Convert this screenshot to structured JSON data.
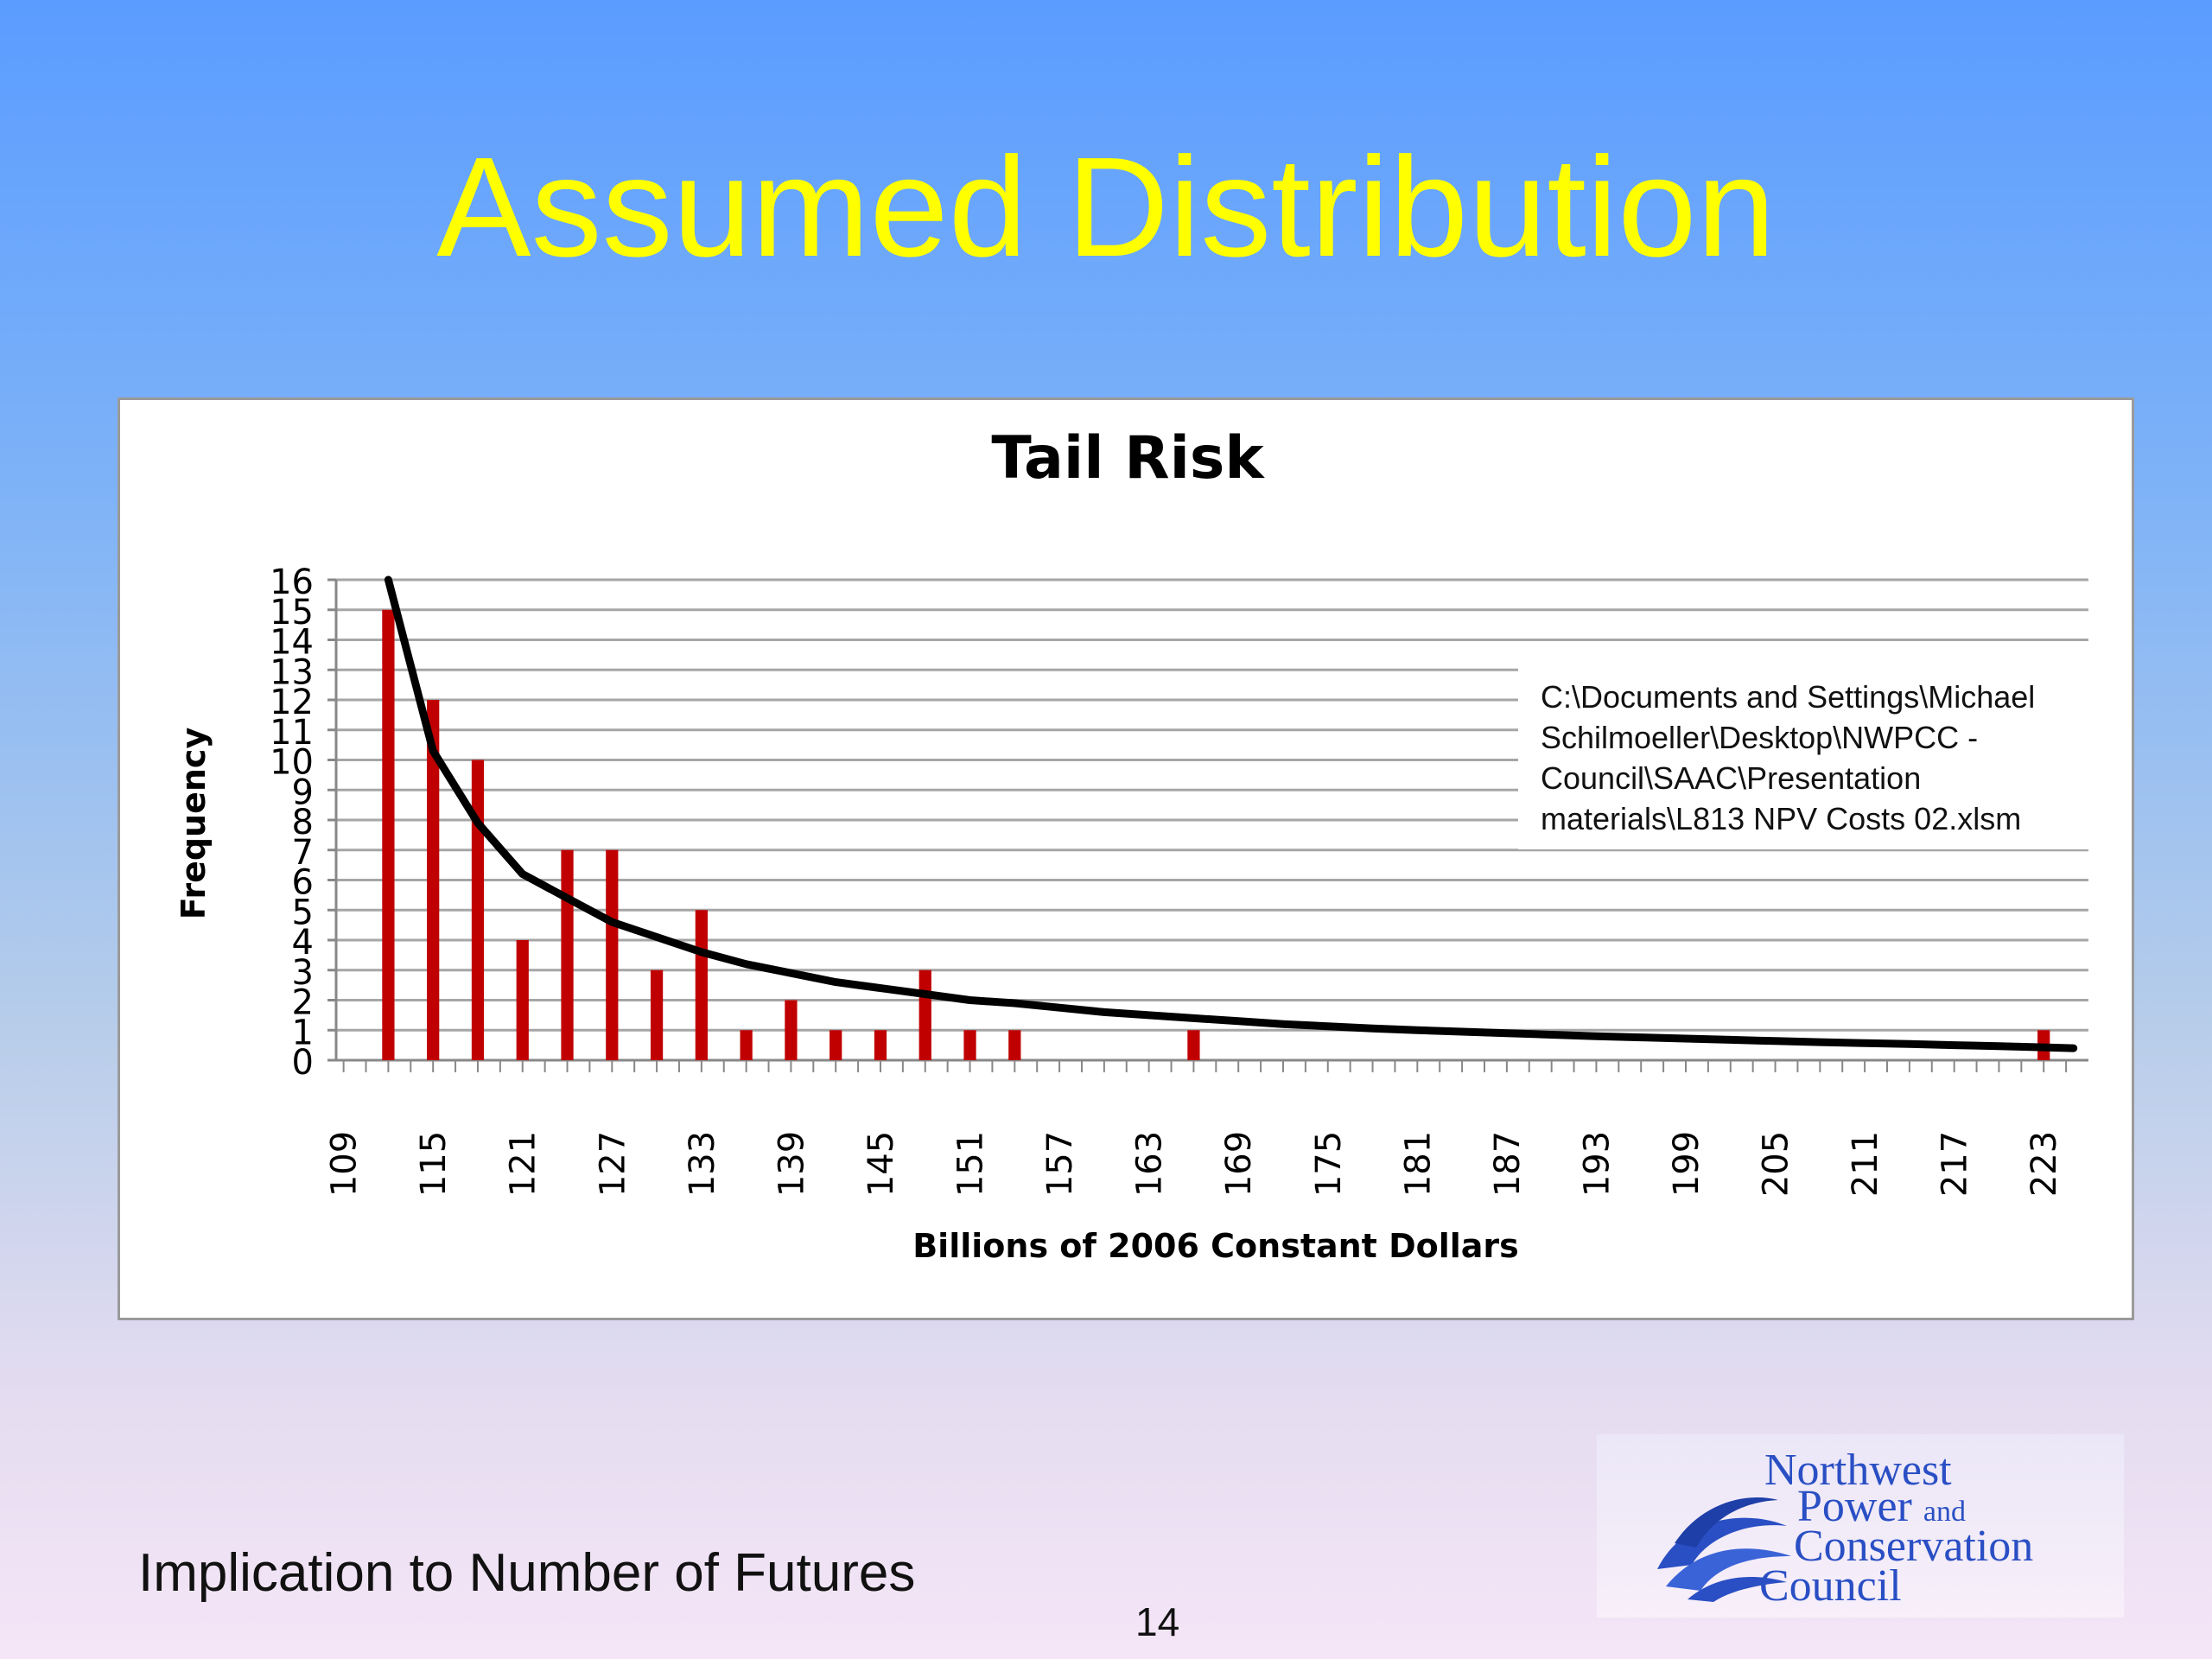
{
  "slide": {
    "title": "Assumed Distribution",
    "footer": "Implication to Number of Futures",
    "page_number": "14"
  },
  "logo": {
    "line1": "Northwest",
    "line2": "Power",
    "line2_small": "and",
    "line3": "Conservation",
    "line4": "Council",
    "color": "#2a4fc4"
  },
  "note": {
    "lines": [
      "C:\\Documents and Settings\\Michael",
      "Schilmoeller\\Desktop\\NWPCC -",
      "Council\\SAAC\\Presentation",
      "materials\\L813 NPV Costs 02.xlsm"
    ]
  },
  "colors": {
    "title": "#ffff00",
    "bar": "#c00000",
    "curve": "#000000",
    "grid": "#a6a6a6"
  },
  "chart_data": {
    "type": "bar",
    "title": "Tail Risk",
    "xlabel": "Billions of 2006 Constant Dollars",
    "ylabel": "Frequency",
    "ylim": [
      0,
      16
    ],
    "y_ticks": [
      "0",
      "1",
      "2",
      "3",
      "4",
      "5",
      "6",
      "7",
      "8",
      "9",
      "10",
      "11",
      "12",
      "13",
      "14",
      "15",
      "16"
    ],
    "grid": true,
    "x_tick_labels": [
      "109",
      "115",
      "121",
      "127",
      "133",
      "139",
      "145",
      "151",
      "157",
      "163",
      "169",
      "175",
      "181",
      "187",
      "193",
      "199",
      "205",
      "211",
      "217",
      "223"
    ],
    "categories": [
      109,
      110.5,
      112,
      113.5,
      115,
      116.5,
      118,
      119.5,
      121,
      122.5,
      124,
      125.5,
      127,
      128.5,
      130,
      131.5,
      133,
      134.5,
      136,
      137.5,
      139,
      140.5,
      142,
      143.5,
      145,
      146.5,
      148,
      149.5,
      151,
      152.5,
      154,
      155.5,
      157,
      158.5,
      160,
      161.5,
      163,
      164.5,
      166,
      167.5,
      169,
      170.5,
      172,
      173.5,
      175,
      176.5,
      178,
      179.5,
      181,
      182.5,
      184,
      185.5,
      187,
      188.5,
      190,
      191.5,
      193,
      194.5,
      196,
      197.5,
      199,
      200.5,
      202,
      203.5,
      205,
      206.5,
      208,
      209.5,
      211,
      212.5,
      214,
      215.5,
      217,
      218.5,
      220,
      221.5,
      223,
      224.5
    ],
    "values": [
      0,
      0,
      15,
      0,
      12,
      0,
      10,
      0,
      4,
      0,
      7,
      0,
      7,
      0,
      3,
      0,
      5,
      0,
      1,
      0,
      2,
      0,
      1,
      0,
      1,
      0,
      3,
      0,
      1,
      0,
      1,
      0,
      0,
      0,
      0,
      0,
      0,
      0,
      1,
      0,
      0,
      0,
      0,
      0,
      0,
      0,
      0,
      0,
      0,
      0,
      0,
      0,
      0,
      0,
      0,
      0,
      0,
      0,
      0,
      0,
      0,
      0,
      0,
      0,
      0,
      0,
      0,
      0,
      0,
      0,
      0,
      0,
      0,
      0,
      0,
      0,
      1,
      0
    ],
    "trend_line": {
      "type": "fitted curve",
      "x": [
        112,
        115,
        118,
        121,
        124,
        127,
        130,
        133,
        136,
        139,
        142,
        145,
        148,
        151,
        154,
        157,
        160,
        163,
        166,
        169,
        172,
        175,
        178,
        181,
        184,
        187,
        190,
        193,
        196,
        199,
        202,
        205,
        208,
        211,
        214,
        217,
        220,
        223,
        225
      ],
      "y": [
        16,
        10.3,
        7.9,
        6.2,
        5.4,
        4.6,
        4.1,
        3.6,
        3.2,
        2.9,
        2.6,
        2.4,
        2.2,
        2.0,
        1.9,
        1.75,
        1.6,
        1.5,
        1.4,
        1.3,
        1.2,
        1.13,
        1.06,
        1.0,
        0.95,
        0.9,
        0.85,
        0.8,
        0.76,
        0.72,
        0.68,
        0.64,
        0.6,
        0.57,
        0.54,
        0.5,
        0.47,
        0.43,
        0.4
      ]
    }
  }
}
